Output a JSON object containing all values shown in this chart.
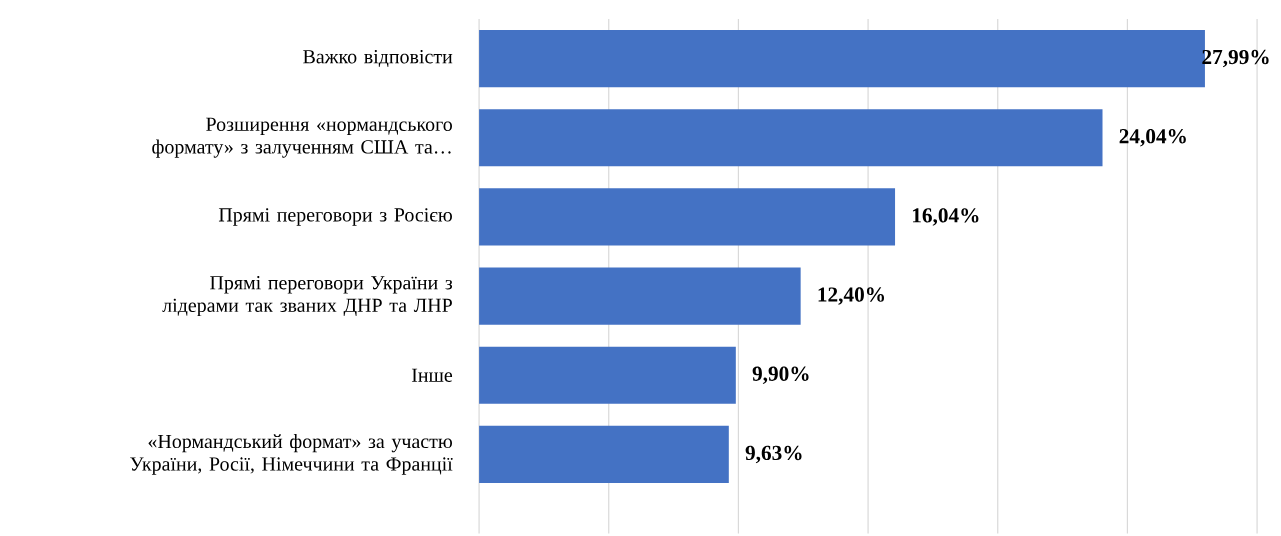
{
  "chart_data": {
    "type": "bar",
    "orientation": "horizontal",
    "categories": [
      "Важко відповісти",
      "Розширення «нормандського формату» з залученням США та…",
      "Прямі переговори з Росією",
      "Прямі переговори України з лідерами так званих ДНР та ЛНР",
      "Інше",
      "«Нормандський формат» за участю України, Росії, Німеччини та Франції"
    ],
    "values": [
      27.99,
      24.04,
      16.04,
      12.4,
      9.9,
      9.63
    ],
    "value_labels": [
      "27,99%",
      "24,04%",
      "16,04%",
      "12,40%",
      "9,90%",
      "9,63%"
    ],
    "color": "#4472c4",
    "xlim": [
      0,
      30
    ],
    "xticks": [
      {
        "value": 0,
        "label": null
      },
      {
        "value": 5,
        "label": null
      },
      {
        "value": 10,
        "label": null
      },
      {
        "value": 15,
        "label": null
      },
      {
        "value": 20,
        "label": null
      },
      {
        "value": 25,
        "label": null
      },
      {
        "value": 30,
        "label": null
      }
    ],
    "tick_labels": "y",
    "grid": "x"
  }
}
